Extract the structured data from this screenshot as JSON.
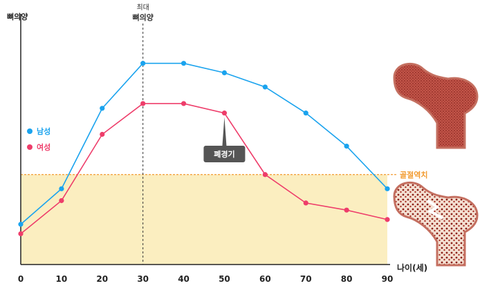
{
  "chart_data": {
    "type": "line",
    "ylabel": "뼈의양",
    "xlabel": "나이(세)",
    "x": [
      0,
      10,
      20,
      30,
      40,
      50,
      60,
      70,
      80,
      90
    ],
    "xlim": [
      0,
      90
    ],
    "series": [
      {
        "name": "남성",
        "color": "#1aa3ee",
        "values": [
          17,
          32,
          66,
          85,
          85,
          81,
          75,
          64,
          50,
          32
        ]
      },
      {
        "name": "여성",
        "color": "#ee3d6a",
        "values": [
          13,
          27,
          55,
          68,
          68,
          64,
          38,
          26,
          23,
          19
        ]
      }
    ],
    "ylim": [
      0,
      103
    ],
    "threshold": {
      "label": "골절역치",
      "value": 38,
      "color": "#f29a2e",
      "fill": "#fbeec0"
    },
    "peak_marker": {
      "x": 30,
      "label_line1": "최대",
      "label_line2": "뼈의양"
    },
    "callout": {
      "label": "폐경기",
      "x": 50
    }
  }
}
